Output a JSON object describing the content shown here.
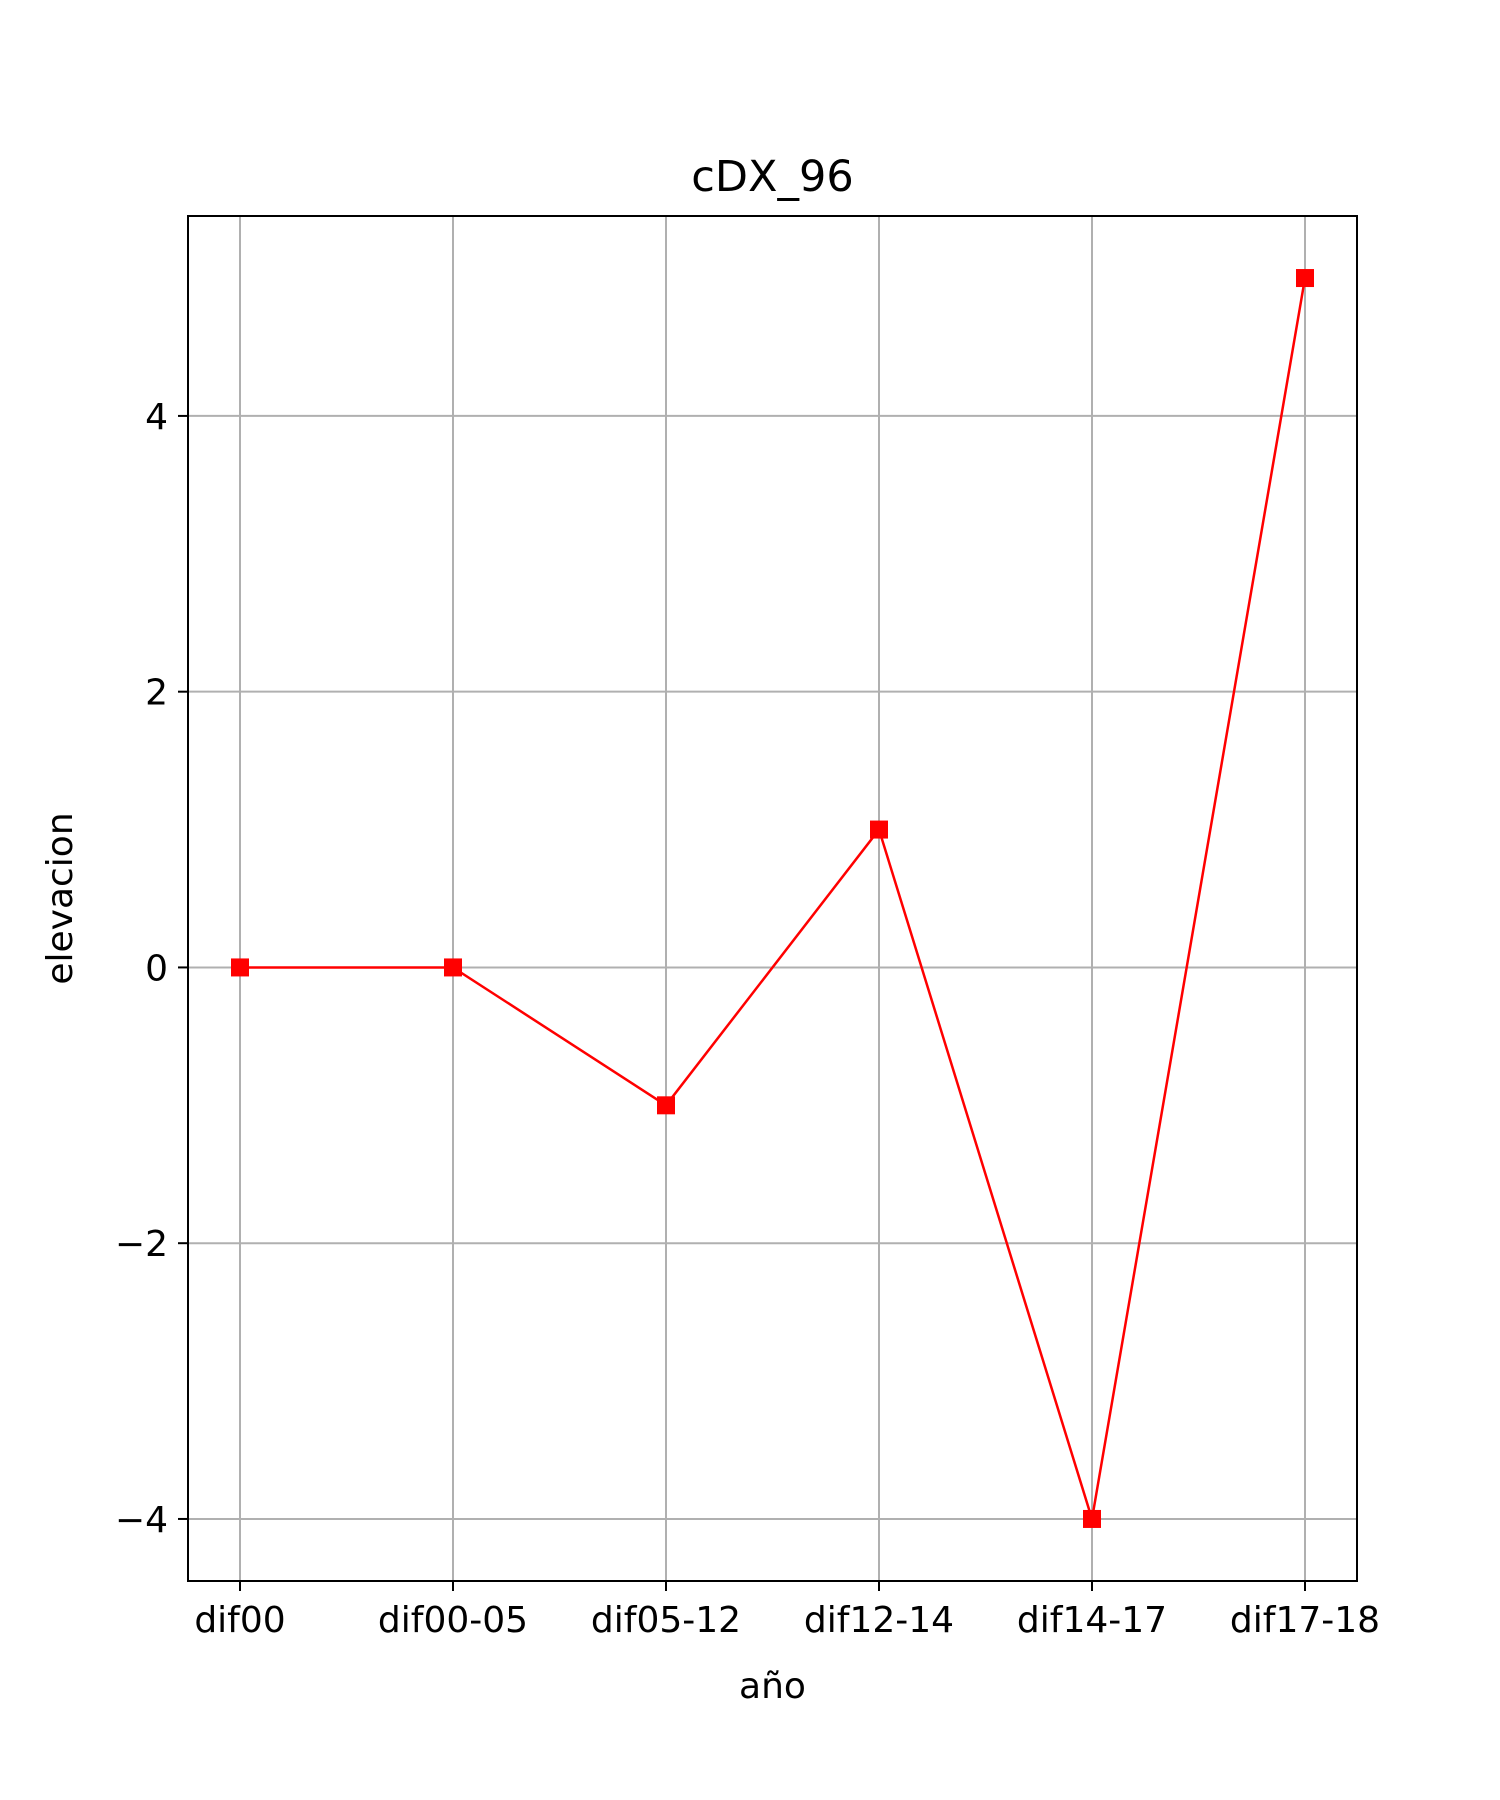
{
  "chart_data": {
    "type": "line",
    "title": "cDX_96",
    "xlabel": "año",
    "ylabel": "elevacion",
    "categories": [
      "dif00",
      "dif00-05",
      "dif05-12",
      "dif12-14",
      "dif14-17",
      "dif17-18"
    ],
    "series": [
      {
        "values": [
          0,
          0,
          -1,
          1,
          -4,
          5
        ],
        "color": "#ff0000",
        "marker": "square"
      }
    ],
    "yticks": [
      -4,
      -2,
      0,
      2,
      4
    ],
    "ytick_labels": [
      "−4",
      "−2",
      "0",
      "2",
      "4"
    ],
    "ylim": [
      -4.45,
      5.45
    ],
    "grid": true
  }
}
